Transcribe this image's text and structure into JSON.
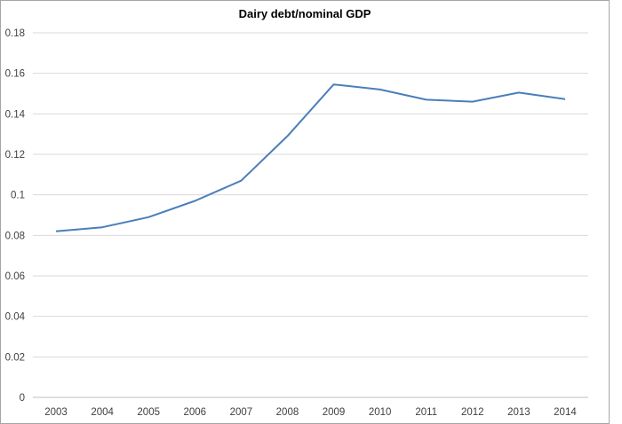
{
  "chart_data": {
    "type": "line",
    "title": "Dairy debt/nominal GDP",
    "xlabel": "",
    "ylabel": "",
    "categories": [
      "2003",
      "2004",
      "2005",
      "2006",
      "2007",
      "2008",
      "2009",
      "2010",
      "2011",
      "2012",
      "2013",
      "2014"
    ],
    "series": [
      {
        "name": "Dairy debt/nominal GDP",
        "color": "#4a7ebb",
        "values": [
          0.082,
          0.084,
          0.089,
          0.097,
          0.107,
          0.129,
          0.1545,
          0.152,
          0.147,
          0.146,
          0.1505,
          0.1473
        ]
      }
    ],
    "ylim": [
      0,
      0.18
    ],
    "yticks": [
      "0",
      "0.02",
      "0.04",
      "0.06",
      "0.08",
      "0.1",
      "0.12",
      "0.14",
      "0.16",
      "0.18"
    ],
    "grid": true,
    "legend": "none"
  },
  "colors": {
    "line": "#4a7ebb",
    "grid": "#d9d9d9",
    "axis": "#bfbfbf",
    "border": "#a6a6a6",
    "tick_text": "#404040"
  }
}
